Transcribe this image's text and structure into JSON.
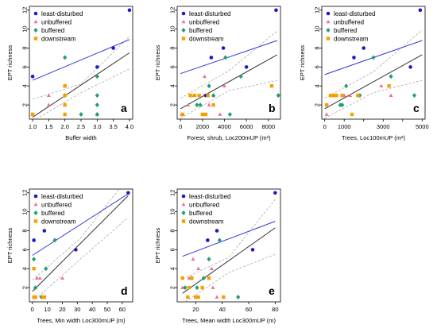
{
  "legend_labels": [
    "least-disturbed",
    "unbuffered",
    "buffered",
    "downstream"
  ],
  "colors": {
    "least_disturbed": "#1a1acc",
    "unbuffered": "#f07090",
    "buffered": "#20a070",
    "downstream": "#f5a000",
    "blue_line": "#3333dd",
    "black_line": "#333333",
    "ci_line": "#aaaaaa"
  },
  "chart_data": [
    {
      "type": "scatter",
      "panel_label": "a",
      "xlabel": "Buffer width",
      "ylabel": "EPT richness",
      "xlim": [
        0.9,
        4.1
      ],
      "ylim": [
        0.5,
        12.4
      ],
      "xticks": [
        1.0,
        1.5,
        2.0,
        2.5,
        3.0,
        3.5,
        4.0
      ],
      "xtick_labels": [
        "1.0",
        "1.5",
        "2.0",
        "2.5",
        "3.0",
        "3.5",
        "4.0"
      ],
      "yticks": [
        2,
        4,
        6,
        8,
        10,
        12
      ],
      "ytick_labels": [
        "2",
        "4",
        "6",
        "8",
        "10",
        "12"
      ],
      "series": [
        {
          "name": "least-disturbed",
          "x": [
            1.0,
            2.0,
            3.5,
            3.0,
            4.0
          ],
          "y": [
            5,
            4,
            8,
            6,
            12
          ]
        },
        {
          "name": "unbuffered",
          "x": [
            1.0,
            1.5,
            1.5,
            2.0,
            2.0,
            2.0,
            3.0
          ],
          "y": [
            1,
            2,
            3,
            1,
            2,
            4,
            1
          ]
        },
        {
          "name": "buffered",
          "x": [
            2.0,
            2.0,
            2.5,
            3.0,
            3.0,
            3.0,
            3.0
          ],
          "y": [
            7,
            3,
            1,
            2,
            3,
            5,
            1
          ]
        },
        {
          "name": "downstream",
          "x": [
            1.0,
            1.0,
            2.0,
            2.0,
            2.0,
            2.0
          ],
          "y": [
            1,
            1,
            1,
            2,
            3,
            4
          ]
        }
      ],
      "fit_lines": {
        "blue": {
          "x": [
            1.0,
            4.0
          ],
          "y": [
            4.6,
            8.9
          ]
        },
        "black": {
          "x": [
            1.0,
            4.0
          ],
          "y": [
            0.7,
            7.5
          ]
        },
        "ci_upper": {
          "x": [
            1.0,
            2.5,
            4.0
          ],
          "y": [
            2.6,
            4.2,
            9.2
          ]
        },
        "ci_lower": {
          "x": [
            1.0,
            2.5,
            4.0
          ],
          "y": [
            0.3,
            3.3,
            5.8
          ]
        }
      }
    },
    {
      "type": "scatter",
      "panel_label": "b",
      "xlabel": "Forest, shrub, Loc200mUP (m²)",
      "ylabel": "EPT richness",
      "xlim": [
        -300,
        9100
      ],
      "ylim": [
        0.5,
        12.4
      ],
      "xticks": [
        0,
        2000,
        4000,
        6000,
        8000
      ],
      "xtick_labels": [
        "0",
        "2000",
        "4000",
        "6000",
        "8000"
      ],
      "yticks": [
        2,
        4,
        6,
        8,
        10,
        12
      ],
      "ytick_labels": [
        "2",
        "4",
        "6",
        "8",
        "10",
        "12"
      ],
      "series": [
        {
          "name": "least-disturbed",
          "x": [
            2800,
            3900,
            6000,
            8700,
            2300
          ],
          "y": [
            7,
            8,
            6,
            12,
            3
          ]
        },
        {
          "name": "unbuffered",
          "x": [
            100,
            700,
            1200,
            2200,
            2600,
            3000,
            3600,
            4000
          ],
          "y": [
            1,
            2,
            3,
            5,
            2,
            3,
            1,
            4
          ]
        },
        {
          "name": "buffered",
          "x": [
            1800,
            2600,
            3000,
            4100,
            4500,
            5500,
            8900,
            1500
          ],
          "y": [
            2,
            4,
            3,
            7,
            1,
            5,
            3,
            2
          ]
        },
        {
          "name": "downstream",
          "x": [
            200,
            900,
            1300,
            1700,
            2000,
            2300,
            2500,
            3000,
            8300
          ],
          "y": [
            1,
            3,
            3,
            3,
            1,
            1,
            3,
            2,
            4
          ]
        }
      ],
      "fit_lines": {
        "blue": {
          "x": [
            0,
            8800
          ],
          "y": [
            5.3,
            8.8
          ]
        },
        "black": {
          "x": [
            0,
            8800
          ],
          "y": [
            1.6,
            7.3
          ]
        },
        "ci_upper": {
          "x": [
            0,
            4400,
            8800
          ],
          "y": [
            2.7,
            5.6,
            9.8
          ]
        },
        "ci_lower": {
          "x": [
            0,
            4400,
            8800
          ],
          "y": [
            0.6,
            3.5,
            4.6
          ]
        }
      }
    },
    {
      "type": "scatter",
      "panel_label": "c",
      "xlabel": "Trees, Loc100mUP (m²)",
      "ylabel": "EPT richness",
      "xlim": [
        -150,
        5150
      ],
      "ylim": [
        0.5,
        12.4
      ],
      "xticks": [
        0,
        1000,
        2000,
        3000,
        4000,
        5000
      ],
      "xtick_labels": [
        "0",
        "1000",
        "",
        "3000",
        "",
        "5000"
      ],
      "yticks": [
        2,
        4,
        6,
        8,
        10,
        12
      ],
      "ytick_labels": [
        "2",
        "4",
        "6",
        "8",
        "10",
        "12"
      ],
      "series": [
        {
          "name": "least-disturbed",
          "x": [
            900,
            1500,
            2000,
            4400,
            4900
          ],
          "y": [
            3,
            7,
            8,
            6,
            12
          ]
        },
        {
          "name": "unbuffered",
          "x": [
            100,
            800,
            1000,
            1300,
            2900,
            3400
          ],
          "y": [
            1,
            2,
            3,
            3,
            4,
            3
          ]
        },
        {
          "name": "buffered",
          "x": [
            800,
            900,
            1100,
            1800,
            2500,
            3400,
            4600
          ],
          "y": [
            2,
            2,
            4,
            3,
            7,
            5,
            3
          ]
        },
        {
          "name": "downstream",
          "x": [
            100,
            300,
            400,
            500,
            600,
            900,
            1400,
            1700,
            3300
          ],
          "y": [
            2,
            3,
            3,
            3,
            3,
            3,
            1,
            3,
            4
          ]
        }
      ],
      "fit_lines": {
        "blue": {
          "x": [
            0,
            5000
          ],
          "y": [
            5.2,
            8.8
          ]
        },
        "black": {
          "x": [
            0,
            5000
          ],
          "y": [
            1.6,
            7.3
          ]
        },
        "ci_upper": {
          "x": [
            0,
            2500,
            5000
          ],
          "y": [
            2.7,
            5.5,
            9.9
          ]
        },
        "ci_lower": {
          "x": [
            0,
            2500,
            5000
          ],
          "y": [
            0.6,
            3.3,
            4.6
          ]
        }
      }
    },
    {
      "type": "scatter",
      "panel_label": "d",
      "xlabel": "Trees, Min width Loc300mUP (m)",
      "ylabel": "EPT richness",
      "xlim": [
        -2,
        67
      ],
      "ylim": [
        0.5,
        12.4
      ],
      "xticks": [
        0,
        10,
        20,
        30,
        40,
        50,
        60
      ],
      "xtick_labels": [
        "0",
        "10",
        "20",
        "30",
        "40",
        "50",
        "60"
      ],
      "yticks": [
        2,
        4,
        6,
        8,
        10,
        12
      ],
      "ytick_labels": [
        "2",
        "4",
        "6",
        "8",
        "10",
        "12"
      ],
      "series": [
        {
          "name": "least-disturbed",
          "x": [
            1,
            8,
            29,
            64
          ],
          "y": [
            7,
            8,
            6,
            12
          ]
        },
        {
          "name": "unbuffered",
          "x": [
            1,
            2,
            3,
            5,
            20,
            7
          ],
          "y": [
            1,
            2,
            3,
            3,
            3,
            1
          ]
        },
        {
          "name": "buffered",
          "x": [
            1,
            2,
            6,
            9,
            15
          ],
          "y": [
            5,
            2,
            1,
            4,
            7
          ]
        },
        {
          "name": "downstream",
          "x": [
            1,
            1,
            2,
            7,
            8
          ],
          "y": [
            1,
            4,
            1,
            1,
            1
          ]
        }
      ],
      "fit_lines": {
        "blue": {
          "x": [
            0,
            64
          ],
          "y": [
            5.4,
            11.9
          ]
        },
        "black": {
          "x": [
            0,
            64
          ],
          "y": [
            1.6,
            11.7
          ]
        },
        "ci_upper": {
          "x": [
            0,
            32,
            64
          ],
          "y": [
            2.8,
            7.2,
            13.6
          ]
        },
        "ci_lower": {
          "x": [
            0,
            32,
            64
          ],
          "y": [
            0.5,
            5.0,
            9.4
          ]
        }
      }
    },
    {
      "type": "scatter",
      "panel_label": "e",
      "xlabel": "Trees, Mean width Loc300mUP (m)",
      "ylabel": "EPT richness",
      "xlim": [
        6,
        84
      ],
      "ylim": [
        0.5,
        12.4
      ],
      "xticks": [
        20,
        40,
        60,
        80
      ],
      "xtick_labels": [
        "20",
        "40",
        "60",
        "80"
      ],
      "yticks": [
        2,
        4,
        6,
        8,
        10,
        12
      ],
      "ytick_labels": [
        "2",
        "4",
        "6",
        "8",
        "10",
        "12"
      ],
      "series": [
        {
          "name": "least-disturbed",
          "x": [
            29,
            36,
            63,
            80
          ],
          "y": [
            7,
            8,
            6,
            12
          ]
        },
        {
          "name": "unbuffered",
          "x": [
            10,
            15,
            18,
            22,
            32,
            33,
            36
          ],
          "y": [
            2,
            3,
            5,
            4,
            4,
            2,
            1
          ]
        },
        {
          "name": "buffered",
          "x": [
            12,
            17,
            21,
            26,
            30,
            38,
            52
          ],
          "y": [
            2,
            3,
            2,
            3,
            5,
            7,
            1
          ]
        },
        {
          "name": "downstream",
          "x": [
            10,
            14,
            15,
            17,
            20,
            22,
            25,
            30,
            41
          ],
          "y": [
            3,
            1,
            2,
            3,
            1,
            1,
            2,
            3,
            1
          ]
        }
      ],
      "fit_lines": {
        "blue": {
          "x": [
            10,
            80
          ],
          "y": [
            5.3,
            9.0
          ]
        },
        "black": {
          "x": [
            10,
            80
          ],
          "y": [
            1.4,
            8.3
          ]
        },
        "ci_upper": {
          "x": [
            10,
            45,
            80
          ],
          "y": [
            2.9,
            5.2,
            11.3
          ]
        },
        "ci_lower": {
          "x": [
            10,
            45,
            80
          ],
          "y": [
            0.3,
            3.6,
            5.5
          ]
        }
      }
    }
  ]
}
